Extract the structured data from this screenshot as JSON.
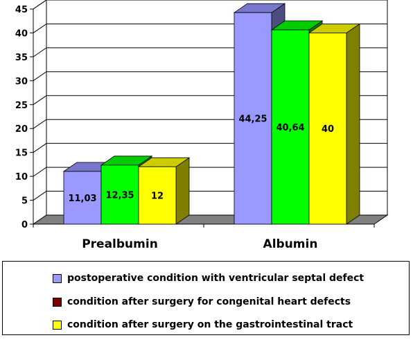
{
  "chart_data": {
    "type": "bar",
    "style": "3d-clustered-column",
    "categories": [
      "Prealbumin",
      "Albumin"
    ],
    "series": [
      {
        "name": "postoperative condition with ventricular septal defect",
        "values": [
          11.03,
          44.25
        ],
        "labels": [
          "11,03",
          "44,25"
        ],
        "color": "#9999ff",
        "side_color": "#4d4d80",
        "top_color": "#7777cc"
      },
      {
        "name": "condition after surgery for congenital heart defects",
        "values": [
          12.35,
          40.64
        ],
        "labels": [
          "12,35",
          "40,64"
        ],
        "color": "#00ff00",
        "side_color": "#008000",
        "top_color": "#00cc00",
        "legend_color": "#800000"
      },
      {
        "name": "condition after surgery on the gastrointestinal tract",
        "values": [
          12,
          40
        ],
        "labels": [
          "12",
          "40"
        ],
        "color": "#ffff00",
        "side_color": "#808000",
        "top_color": "#cccc00"
      }
    ],
    "y_ticks": [
      0,
      5,
      10,
      15,
      20,
      25,
      30,
      35,
      40,
      45
    ],
    "ylim": [
      0,
      45
    ],
    "grid": true,
    "legend_position": "bottom",
    "title": "",
    "xlabel": "",
    "ylabel": ""
  }
}
